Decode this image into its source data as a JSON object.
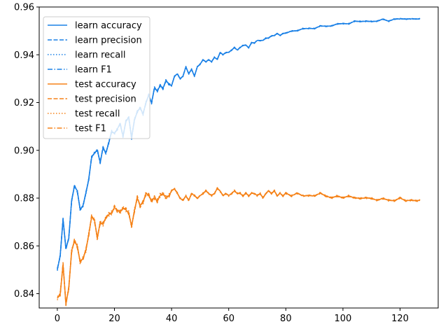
{
  "chart_data": {
    "type": "line",
    "title": "",
    "xlabel": "",
    "ylabel": "",
    "xlim": [
      -6.35,
      133.35
    ],
    "ylim": [
      0.834,
      0.96
    ],
    "xticks": [
      0,
      20,
      40,
      60,
      80,
      100,
      120
    ],
    "yticks": [
      0.84,
      0.86,
      0.88,
      0.9,
      0.92,
      0.94,
      0.96
    ],
    "xtick_labels": [
      "0",
      "20",
      "40",
      "60",
      "80",
      "100",
      "120"
    ],
    "ytick_labels": [
      "0.84",
      "0.86",
      "0.88",
      "0.90",
      "0.92",
      "0.94",
      "0.96"
    ],
    "grid": false,
    "legend_position": "upper left",
    "colors": {
      "learn": "#1a80e6",
      "test": "#f58218"
    },
    "learn_base": [
      [
        0,
        0.85
      ],
      [
        1,
        0.856
      ],
      [
        2,
        0.871
      ],
      [
        3,
        0.859
      ],
      [
        4,
        0.863
      ],
      [
        5,
        0.879
      ],
      [
        6,
        0.885
      ],
      [
        7,
        0.883
      ],
      [
        8,
        0.875
      ],
      [
        9,
        0.877
      ],
      [
        10,
        0.882
      ],
      [
        11,
        0.888
      ],
      [
        12,
        0.897
      ],
      [
        13,
        0.899
      ],
      [
        14,
        0.9
      ],
      [
        15,
        0.895
      ],
      [
        16,
        0.901
      ],
      [
        17,
        0.899
      ],
      [
        18,
        0.903
      ],
      [
        19,
        0.908
      ],
      [
        20,
        0.907
      ],
      [
        21,
        0.909
      ],
      [
        22,
        0.911
      ],
      [
        23,
        0.906
      ],
      [
        24,
        0.912
      ],
      [
        25,
        0.914
      ],
      [
        26,
        0.905
      ],
      [
        27,
        0.913
      ],
      [
        28,
        0.916
      ],
      [
        29,
        0.918
      ],
      [
        30,
        0.915
      ],
      [
        31,
        0.92
      ],
      [
        32,
        0.923
      ],
      [
        33,
        0.92
      ],
      [
        34,
        0.926
      ],
      [
        35,
        0.925
      ],
      [
        36,
        0.927
      ],
      [
        37,
        0.926
      ],
      [
        38,
        0.929
      ],
      [
        39,
        0.928
      ],
      [
        40,
        0.927
      ],
      [
        41,
        0.931
      ],
      [
        42,
        0.932
      ],
      [
        43,
        0.93
      ],
      [
        44,
        0.931
      ],
      [
        45,
        0.935
      ],
      [
        46,
        0.932
      ],
      [
        47,
        0.934
      ],
      [
        48,
        0.931
      ],
      [
        49,
        0.935
      ],
      [
        50,
        0.936
      ],
      [
        51,
        0.938
      ],
      [
        52,
        0.937
      ],
      [
        53,
        0.938
      ],
      [
        54,
        0.937
      ],
      [
        55,
        0.939
      ],
      [
        56,
        0.938
      ],
      [
        57,
        0.941
      ],
      [
        58,
        0.94
      ],
      [
        59,
        0.941
      ],
      [
        60,
        0.941
      ],
      [
        61,
        0.942
      ],
      [
        62,
        0.943
      ],
      [
        63,
        0.942
      ],
      [
        64,
        0.943
      ],
      [
        65,
        0.944
      ],
      [
        66,
        0.944
      ],
      [
        67,
        0.943
      ],
      [
        68,
        0.945
      ],
      [
        69,
        0.945
      ],
      [
        70,
        0.946
      ],
      [
        71,
        0.946
      ],
      [
        72,
        0.946
      ],
      [
        73,
        0.947
      ],
      [
        74,
        0.947
      ],
      [
        75,
        0.948
      ],
      [
        76,
        0.948
      ],
      [
        77,
        0.949
      ],
      [
        78,
        0.948
      ],
      [
        79,
        0.949
      ],
      [
        80,
        0.949
      ],
      [
        82,
        0.95
      ],
      [
        84,
        0.95
      ],
      [
        86,
        0.951
      ],
      [
        88,
        0.951
      ],
      [
        90,
        0.951
      ],
      [
        92,
        0.952
      ],
      [
        94,
        0.952
      ],
      [
        96,
        0.952
      ],
      [
        98,
        0.953
      ],
      [
        100,
        0.953
      ],
      [
        102,
        0.953
      ],
      [
        104,
        0.954
      ],
      [
        106,
        0.954
      ],
      [
        108,
        0.954
      ],
      [
        110,
        0.954
      ],
      [
        112,
        0.954
      ],
      [
        114,
        0.955
      ],
      [
        116,
        0.954
      ],
      [
        118,
        0.955
      ],
      [
        120,
        0.955
      ],
      [
        122,
        0.955
      ],
      [
        124,
        0.955
      ],
      [
        126,
        0.955
      ],
      [
        127,
        0.955
      ]
    ],
    "test_base": [
      [
        0,
        0.838
      ],
      [
        1,
        0.84
      ],
      [
        2,
        0.852
      ],
      [
        3,
        0.836
      ],
      [
        4,
        0.842
      ],
      [
        5,
        0.858
      ],
      [
        6,
        0.862
      ],
      [
        7,
        0.86
      ],
      [
        8,
        0.853
      ],
      [
        9,
        0.855
      ],
      [
        10,
        0.858
      ],
      [
        11,
        0.865
      ],
      [
        12,
        0.872
      ],
      [
        13,
        0.871
      ],
      [
        14,
        0.863
      ],
      [
        15,
        0.87
      ],
      [
        16,
        0.869
      ],
      [
        17,
        0.872
      ],
      [
        18,
        0.873
      ],
      [
        19,
        0.874
      ],
      [
        20,
        0.876
      ],
      [
        21,
        0.875
      ],
      [
        22,
        0.874
      ],
      [
        23,
        0.876
      ],
      [
        24,
        0.875
      ],
      [
        25,
        0.874
      ],
      [
        26,
        0.868
      ],
      [
        27,
        0.875
      ],
      [
        28,
        0.88
      ],
      [
        29,
        0.877
      ],
      [
        30,
        0.878
      ],
      [
        31,
        0.882
      ],
      [
        32,
        0.881
      ],
      [
        33,
        0.879
      ],
      [
        34,
        0.88
      ],
      [
        35,
        0.879
      ],
      [
        36,
        0.881
      ],
      [
        37,
        0.882
      ],
      [
        38,
        0.88
      ],
      [
        39,
        0.881
      ],
      [
        40,
        0.883
      ],
      [
        41,
        0.884
      ],
      [
        42,
        0.882
      ],
      [
        43,
        0.88
      ],
      [
        44,
        0.879
      ],
      [
        45,
        0.881
      ],
      [
        46,
        0.879
      ],
      [
        47,
        0.882
      ],
      [
        48,
        0.881
      ],
      [
        49,
        0.88
      ],
      [
        50,
        0.881
      ],
      [
        51,
        0.882
      ],
      [
        52,
        0.883
      ],
      [
        53,
        0.882
      ],
      [
        54,
        0.881
      ],
      [
        55,
        0.882
      ],
      [
        56,
        0.884
      ],
      [
        57,
        0.883
      ],
      [
        58,
        0.881
      ],
      [
        59,
        0.882
      ],
      [
        60,
        0.881
      ],
      [
        61,
        0.882
      ],
      [
        62,
        0.883
      ],
      [
        63,
        0.882
      ],
      [
        64,
        0.882
      ],
      [
        65,
        0.881
      ],
      [
        66,
        0.882
      ],
      [
        67,
        0.881
      ],
      [
        68,
        0.882
      ],
      [
        69,
        0.882
      ],
      [
        70,
        0.881
      ],
      [
        71,
        0.882
      ],
      [
        72,
        0.88
      ],
      [
        73,
        0.882
      ],
      [
        74,
        0.883
      ],
      [
        75,
        0.882
      ],
      [
        76,
        0.883
      ],
      [
        77,
        0.881
      ],
      [
        78,
        0.882
      ],
      [
        79,
        0.881
      ],
      [
        80,
        0.882
      ],
      [
        82,
        0.881
      ],
      [
        84,
        0.882
      ],
      [
        86,
        0.881
      ],
      [
        88,
        0.881
      ],
      [
        90,
        0.881
      ],
      [
        92,
        0.882
      ],
      [
        94,
        0.881
      ],
      [
        96,
        0.88
      ],
      [
        98,
        0.881
      ],
      [
        100,
        0.88
      ],
      [
        102,
        0.881
      ],
      [
        104,
        0.88
      ],
      [
        106,
        0.88
      ],
      [
        108,
        0.88
      ],
      [
        110,
        0.88
      ],
      [
        112,
        0.879
      ],
      [
        114,
        0.88
      ],
      [
        116,
        0.879
      ],
      [
        118,
        0.879
      ],
      [
        120,
        0.88
      ],
      [
        122,
        0.879
      ],
      [
        124,
        0.879
      ],
      [
        126,
        0.879
      ],
      [
        127,
        0.879
      ]
    ],
    "series": [
      {
        "name": "learn accuracy",
        "group": "learn",
        "dash": "solid"
      },
      {
        "name": "learn precision",
        "group": "learn",
        "dash": "dashed"
      },
      {
        "name": "learn recall",
        "group": "learn",
        "dash": "dotted"
      },
      {
        "name": "learn F1",
        "group": "learn",
        "dash": "dashdot"
      },
      {
        "name": "test accuracy",
        "group": "test",
        "dash": "solid"
      },
      {
        "name": "test precision",
        "group": "test",
        "dash": "dashed"
      },
      {
        "name": "test recall",
        "group": "test",
        "dash": "dotted"
      },
      {
        "name": "test F1",
        "group": "test",
        "dash": "dashdot"
      }
    ]
  }
}
